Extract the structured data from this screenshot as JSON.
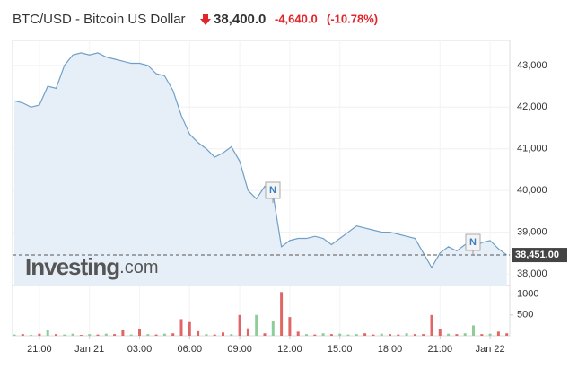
{
  "chart_data": {
    "type": "line",
    "title": "BTC/USD - Bitcoin US Dollar",
    "quote": {
      "price": "38,400.0",
      "change": "-4,640.0",
      "change_percent": "(-10.78%)"
    },
    "categories": [
      null,
      null,
      null,
      "21:00",
      null,
      null,
      null,
      null,
      null,
      "Jan 21",
      null,
      null,
      null,
      null,
      null,
      "03:00",
      null,
      null,
      null,
      null,
      null,
      "06:00",
      null,
      null,
      null,
      null,
      null,
      "09:00",
      null,
      null,
      null,
      null,
      null,
      "12:00",
      null,
      null,
      null,
      null,
      null,
      "15:00",
      null,
      null,
      null,
      null,
      null,
      "18:00",
      null,
      null,
      null,
      null,
      null,
      "21:00",
      null,
      null,
      null,
      null,
      null,
      "Jan 22",
      null,
      null
    ],
    "price": {
      "color": "#6f9fc8",
      "fill": "#e6eff7",
      "values": [
        42150,
        42100,
        42000,
        42050,
        42500,
        42450,
        43000,
        43250,
        43300,
        43250,
        43300,
        43200,
        43150,
        43100,
        43050,
        43050,
        43000,
        42800,
        42750,
        42400,
        41800,
        41350,
        41150,
        41000,
        40800,
        40900,
        41050,
        40700,
        40000,
        39800,
        40100,
        39900,
        38650,
        38800,
        38850,
        38850,
        38900,
        38850,
        38700,
        38850,
        39000,
        39150,
        39100,
        39050,
        39000,
        39000,
        38950,
        38900,
        38850,
        38500,
        38150,
        38500,
        38650,
        38550,
        38700,
        38600,
        38750,
        38800,
        38600,
        38451
      ]
    },
    "ylim": [
      37720,
      43600
    ],
    "yticks": [
      {
        "value": 38000,
        "label": "38,000"
      },
      {
        "value": 39000,
        "label": "39,000"
      },
      {
        "value": 40000,
        "label": "40,000"
      },
      {
        "value": 41000,
        "label": "41,000"
      },
      {
        "value": 42000,
        "label": "42,000"
      },
      {
        "value": 43000,
        "label": "43,000"
      }
    ],
    "grid": true,
    "last_price": {
      "value": 38451,
      "label": "38,451.00"
    },
    "news_markers": [
      {
        "label": "N"
      },
      {
        "label": "N"
      }
    ],
    "watermark": {
      "brand": "Investing",
      "suffix": ".com"
    },
    "volume": {
      "type": "bar",
      "values": [
        30,
        40,
        20,
        50,
        130,
        40,
        30,
        50,
        20,
        40,
        30,
        50,
        40,
        130,
        30,
        170,
        40,
        30,
        50,
        60,
        400,
        330,
        110,
        40,
        30,
        80,
        40,
        500,
        180,
        500,
        60,
        350,
        1050,
        450,
        100,
        40,
        30,
        60,
        40,
        50,
        30,
        40,
        60,
        30,
        50,
        40,
        30,
        60,
        40,
        40,
        500,
        170,
        50,
        40,
        60,
        250,
        40,
        50,
        100,
        60
      ],
      "colors": [
        "#8fcc9a",
        "#e06666",
        "#8fcc9a",
        "#e06666",
        "#8fcc9a",
        "#e06666",
        "#8fcc9a",
        "#8fcc9a",
        "#e06666",
        "#8fcc9a",
        "#e06666",
        "#8fcc9a",
        "#e06666",
        "#e06666",
        "#8fcc9a",
        "#e06666",
        "#8fcc9a",
        "#e06666",
        "#8fcc9a",
        "#e06666",
        "#e06666",
        "#e06666",
        "#e06666",
        "#8fcc9a",
        "#e06666",
        "#e06666",
        "#8fcc9a",
        "#e06666",
        "#e06666",
        "#8fcc9a",
        "#e06666",
        "#8fcc9a",
        "#e06666",
        "#e06666",
        "#e06666",
        "#8fcc9a",
        "#e06666",
        "#8fcc9a",
        "#e06666",
        "#8fcc9a",
        "#8fcc9a",
        "#8fcc9a",
        "#e06666",
        "#e06666",
        "#8fcc9a",
        "#e06666",
        "#e06666",
        "#8fcc9a",
        "#e06666",
        "#e06666",
        "#e06666",
        "#e06666",
        "#8fcc9a",
        "#e06666",
        "#8fcc9a",
        "#8fcc9a",
        "#e06666",
        "#8fcc9a",
        "#e06666",
        "#e06666"
      ],
      "ylim": [
        0,
        1100
      ],
      "yticks": [
        500,
        1000
      ]
    }
  }
}
